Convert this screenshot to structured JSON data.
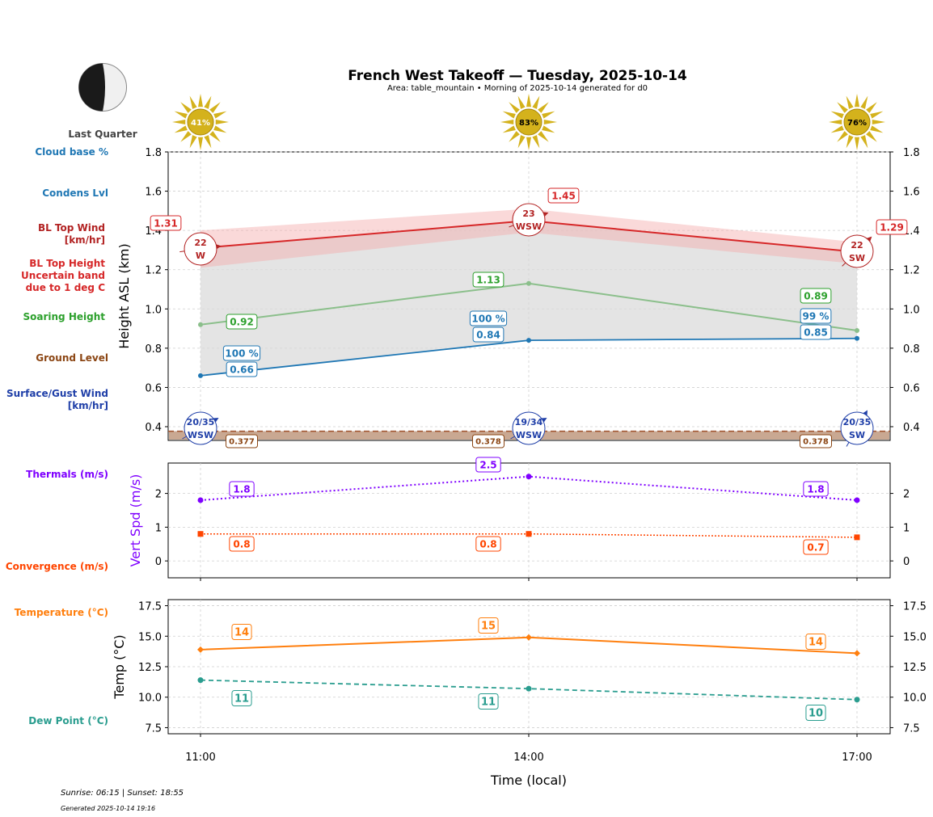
{
  "header": {
    "title": "French West Takeoff — Tuesday, 2025-10-14",
    "subtitle": "Area: table_mountain • Morning of 2025-10-14 generated for d0"
  },
  "moon": {
    "phase_label": "Last Quarter"
  },
  "sun_icons": [
    {
      "time": "11:00",
      "label": "41%",
      "icon": "sun-icon"
    },
    {
      "time": "14:00",
      "label": "83%",
      "icon": "sun-icon"
    },
    {
      "time": "17:00",
      "label": "76%",
      "icon": "sun-icon"
    }
  ],
  "side_labels": {
    "cloud_base": "Cloud base %",
    "condens": "Condens Lvl",
    "bl_wind_1": "BL Top Wind",
    "bl_wind_2": "[km/hr]",
    "bl_height_1": "BL Top Height",
    "bl_height_2": "Uncertain band",
    "bl_height_3": "due to 1 deg C",
    "soaring": "Soaring Height",
    "ground": "Ground Level",
    "surface_1": "Surface/Gust Wind",
    "surface_2": "[km/hr]",
    "thermals": "Thermals (m/s)",
    "convergence": "Convergence (m/s)",
    "temperature": "Temperature (°C)",
    "dewpoint": "Dew Point (°C)"
  },
  "footer": {
    "sun_times": "Sunrise: 06:15 | Sunset: 18:55",
    "generated": "Generated 2025-10-14 19:16"
  },
  "colors": {
    "bl_top": "#d62728",
    "bl_band": "#f4aaaa",
    "soaring": "#8bbf8b",
    "soaring_text": "#2ca02c",
    "condens": "#1f77b4",
    "ground": "#8b4513",
    "ground_fill": "#c9a892",
    "surface_wind": "#1f3fa8",
    "thermals": "#7f00ff",
    "convergence": "#ff4500",
    "temperature": "#ff7f0e",
    "dewpoint": "#2a9d8f",
    "sun": "#d4b21c"
  },
  "chart_data": [
    {
      "id": "height",
      "type": "line",
      "x": [
        "11:00",
        "14:00",
        "17:00"
      ],
      "ylabel": "Height ASL (km)",
      "ylim": [
        0.33,
        1.8
      ],
      "yticks": [
        "0.4",
        "0.6",
        "0.8",
        "1.0",
        "1.2",
        "1.4",
        "1.6",
        "1.8"
      ],
      "ytick_values": [
        0.4,
        0.6,
        0.8,
        1.0,
        1.2,
        1.4,
        1.6,
        1.8
      ],
      "grid": true,
      "bl_top": {
        "values": [
          1.31,
          1.45,
          1.29
        ],
        "labels": [
          "1.31",
          "1.45",
          "1.29"
        ],
        "band_upper": [
          1.4,
          1.51,
          1.34
        ],
        "band_lower": [
          1.21,
          1.39,
          1.23
        ]
      },
      "soaring": {
        "values": [
          0.92,
          1.13,
          0.89
        ],
        "labels": [
          "0.92",
          "1.13",
          "0.89"
        ]
      },
      "condens": {
        "values": [
          0.66,
          0.84,
          0.85
        ],
        "labels": [
          "0.66",
          "0.84",
          "0.85"
        ]
      },
      "cloud_base_pct": [
        "100 %",
        "100 %",
        "99 %"
      ],
      "ground": {
        "values": [
          0.377,
          0.378,
          0.378
        ],
        "labels": [
          "0.377",
          "0.378",
          "0.378"
        ]
      },
      "bl_wind": [
        {
          "speed": "22",
          "dir": "W"
        },
        {
          "speed": "23",
          "dir": "WSW"
        },
        {
          "speed": "22",
          "dir": "SW"
        }
      ],
      "surface_wind": [
        {
          "speed": "20/35",
          "dir": "WSW"
        },
        {
          "speed": "19/34",
          "dir": "WSW"
        },
        {
          "speed": "20/35",
          "dir": "SW"
        }
      ]
    },
    {
      "id": "vertical",
      "type": "line",
      "x": [
        "11:00",
        "14:00",
        "17:00"
      ],
      "ylabel": "Vert Spd (m/s)",
      "ylim": [
        -0.5,
        2.9
      ],
      "yticks": [
        "0",
        "1",
        "2"
      ],
      "ytick_values": [
        0,
        1,
        2
      ],
      "grid": true,
      "series": [
        {
          "name": "Thermals (m/s)",
          "values": [
            1.8,
            2.5,
            1.8
          ],
          "labels": [
            "1.8",
            "2.5",
            "1.8"
          ]
        },
        {
          "name": "Convergence (m/s)",
          "values": [
            0.8,
            0.8,
            0.7
          ],
          "labels": [
            "0.8",
            "0.8",
            "0.7"
          ]
        }
      ]
    },
    {
      "id": "temperature",
      "type": "line",
      "x": [
        "11:00",
        "14:00",
        "17:00"
      ],
      "xlabel": "Time (local)",
      "ylabel": "Temp (°C)",
      "ylim": [
        7.0,
        18.0
      ],
      "yticks": [
        "7.5",
        "10.0",
        "12.5",
        "15.0",
        "17.5"
      ],
      "ytick_values": [
        7.5,
        10.0,
        12.5,
        15.0,
        17.5
      ],
      "grid": true,
      "series": [
        {
          "name": "Temperature (°C)",
          "values": [
            13.9,
            14.9,
            13.6
          ],
          "labels": [
            "14",
            "15",
            "14"
          ]
        },
        {
          "name": "Dew Point (°C)",
          "values": [
            11.4,
            10.7,
            9.8
          ],
          "labels": [
            "11",
            "11",
            "10"
          ]
        }
      ]
    }
  ]
}
